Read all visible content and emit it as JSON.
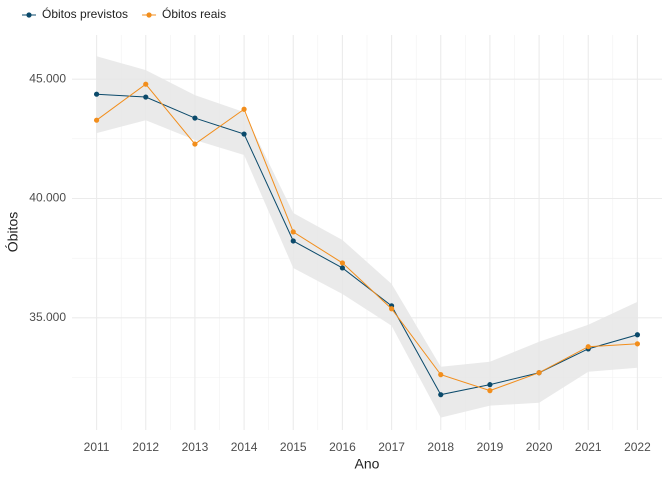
{
  "chart_data": {
    "type": "line",
    "x_label": "Ano",
    "y_label": "Óbitos",
    "x": [
      2011,
      2012,
      2013,
      2014,
      2015,
      2016,
      2017,
      2018,
      2019,
      2020,
      2021,
      2022
    ],
    "series": [
      {
        "name": "Óbitos previstos",
        "color": "#0b4a6b",
        "values": [
          44370,
          44250,
          43370,
          42700,
          38220,
          37090,
          35500,
          31780,
          32200,
          32700,
          33700,
          34290
        ]
      },
      {
        "name": "Óbitos reais",
        "color": "#f28e1c",
        "values": [
          43280,
          44790,
          42280,
          43740,
          38600,
          37300,
          35380,
          32620,
          31950,
          32700,
          33790,
          33910
        ]
      }
    ],
    "band": {
      "color": "#e6e6e6",
      "upper": [
        45960,
        45380,
        44330,
        43620,
        39390,
        38260,
        36420,
        32950,
        33160,
        34000,
        34710,
        35670
      ],
      "lower": [
        42740,
        43280,
        42450,
        41820,
        37090,
        36000,
        34670,
        30820,
        31320,
        31440,
        32740,
        32910
      ]
    },
    "xlim": [
      2010.5,
      2022.5
    ],
    "xticks": [
      2011,
      2012,
      2013,
      2014,
      2015,
      2016,
      2017,
      2018,
      2019,
      2020,
      2021,
      2022
    ],
    "ylim": [
      30300,
      46850
    ],
    "yticks": [
      {
        "value": 35000,
        "label": "35.000"
      },
      {
        "value": 40000,
        "label": "40.000"
      },
      {
        "value": 45000,
        "label": "45.000"
      }
    ],
    "grid": true,
    "legend": "top-left"
  }
}
